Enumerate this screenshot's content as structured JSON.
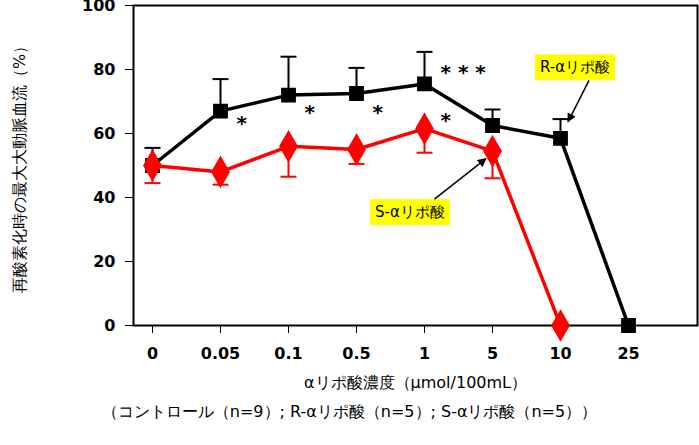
{
  "chart_data": {
    "type": "line",
    "y_label": "再酸素化時の最大大動脈血流（%）",
    "x_label": "αリポ酸濃度（μmol/100mL）",
    "caption": "（コントロール（n=9）; R-αリポ酸（n=5）; S-αリポ酸（n=5））",
    "categories": [
      "0",
      "0.05",
      "0.1",
      "0.5",
      "1",
      "5",
      "10",
      "25"
    ],
    "series": [
      {
        "name": "R-αリポ酸",
        "color": "#000000",
        "marker": "square",
        "values": [
          50,
          67,
          72,
          72.5,
          75.5,
          62.5,
          58.5,
          0
        ],
        "error_upper": [
          5.5,
          10,
          12,
          8,
          10,
          5,
          6,
          0
        ]
      },
      {
        "name": "S-αリポ酸",
        "color": "#ff0000",
        "marker": "diamond",
        "values": [
          50,
          48,
          56,
          55,
          61.5,
          54.5,
          0,
          null
        ],
        "error_lower": [
          5.5,
          4,
          9.5,
          4.5,
          7.5,
          8.5,
          0,
          null
        ]
      }
    ],
    "annotations": [
      {
        "text": "*",
        "category": "0.05",
        "y": 63
      },
      {
        "text": "*",
        "category": "0.1",
        "y": 66.5
      },
      {
        "text": "*",
        "category": "0.5",
        "y": 66.5
      },
      {
        "text": "*",
        "category": "1",
        "y": 64
      },
      {
        "text": "* * *",
        "category": "1",
        "y": 79
      }
    ],
    "ylim": [
      0,
      100
    ],
    "yticks": [
      0,
      20,
      40,
      60,
      80,
      100
    ],
    "grid": false
  }
}
